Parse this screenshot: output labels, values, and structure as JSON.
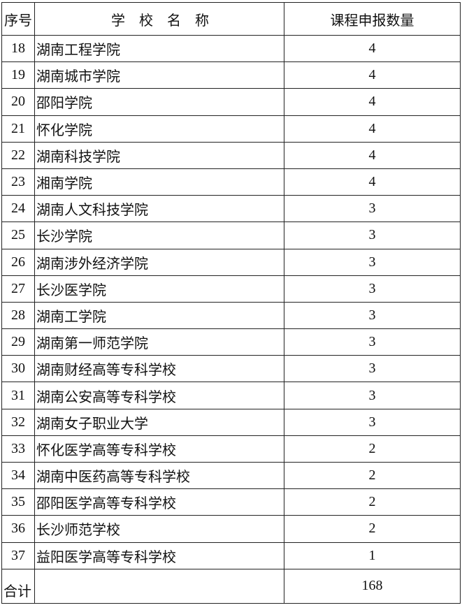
{
  "header": {
    "col_index": "序号",
    "col_name": "学　校　名　称",
    "col_count": "课程申报数量"
  },
  "rows": [
    {
      "index": "18",
      "name": "湖南工程学院",
      "count": "4"
    },
    {
      "index": "19",
      "name": "湖南城市学院",
      "count": "4"
    },
    {
      "index": "20",
      "name": "邵阳学院",
      "count": "4"
    },
    {
      "index": "21",
      "name": "怀化学院",
      "count": "4"
    },
    {
      "index": "22",
      "name": "湖南科技学院",
      "count": "4"
    },
    {
      "index": "23",
      "name": "湘南学院",
      "count": "4"
    },
    {
      "index": "24",
      "name": "湖南人文科技学院",
      "count": "3"
    },
    {
      "index": "25",
      "name": "长沙学院",
      "count": "3"
    },
    {
      "index": "26",
      "name": "湖南涉外经济学院",
      "count": "3"
    },
    {
      "index": "27",
      "name": "长沙医学院",
      "count": "3"
    },
    {
      "index": "28",
      "name": "湖南工学院",
      "count": "3"
    },
    {
      "index": "29",
      "name": "湖南第一师范学院",
      "count": "3"
    },
    {
      "index": "30",
      "name": "湖南财经高等专科学校",
      "count": "3"
    },
    {
      "index": "31",
      "name": "湖南公安高等专科学校",
      "count": "3"
    },
    {
      "index": "32",
      "name": "湖南女子职业大学",
      "count": "3"
    },
    {
      "index": "33",
      "name": "怀化医学高等专科学校",
      "count": "2"
    },
    {
      "index": "34",
      "name": "湖南中医药高等专科学校",
      "count": "2"
    },
    {
      "index": "35",
      "name": "邵阳医学高等专科学校",
      "count": "2"
    },
    {
      "index": "36",
      "name": "长沙师范学校",
      "count": "2"
    },
    {
      "index": "37",
      "name": "益阳医学高等专科学校",
      "count": "1"
    }
  ],
  "total": {
    "label": "合计",
    "count": "168"
  }
}
